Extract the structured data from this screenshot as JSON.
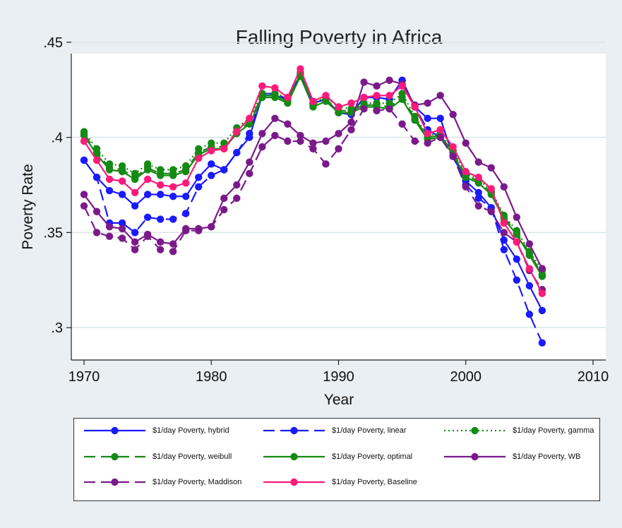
{
  "chart_data": {
    "type": "line",
    "title": "Falling Poverty in Africa",
    "xlabel": "Year",
    "ylabel": "Poverty Rate",
    "xlim": [
      1969,
      2011
    ],
    "ylim": [
      0.283,
      0.444
    ],
    "xticks": [
      1970,
      1980,
      1990,
      2000,
      2010
    ],
    "xtick_labels": [
      "1970",
      "1980",
      "1990",
      "2000",
      "2010"
    ],
    "yticks": [
      0.3,
      0.35,
      0.4,
      0.45
    ],
    "ytick_labels": [
      ".3",
      ".35",
      ".4",
      ".45"
    ],
    "grid": true,
    "legend_position": "bottom",
    "x": [
      1970,
      1971,
      1972,
      1973,
      1974,
      1975,
      1976,
      1977,
      1978,
      1979,
      1980,
      1981,
      1982,
      1983,
      1984,
      1985,
      1986,
      1987,
      1988,
      1989,
      1990,
      1991,
      1992,
      1993,
      1994,
      1995,
      1996,
      1997,
      1998,
      1999,
      2000,
      2001,
      2002,
      2003,
      2004,
      2005,
      2006
    ],
    "series": [
      {
        "name": "$1/day Poverty, hybrid",
        "color": "#1a1aff",
        "dash": "solid",
        "values": [
          0.388,
          0.379,
          0.372,
          0.37,
          0.364,
          0.37,
          0.37,
          0.369,
          0.369,
          0.379,
          0.386,
          0.383,
          0.392,
          0.4,
          0.422,
          0.422,
          0.42,
          0.433,
          0.418,
          0.42,
          0.413,
          0.412,
          0.421,
          0.421,
          0.42,
          0.43,
          0.416,
          0.41,
          0.41,
          0.39,
          0.377,
          0.371,
          0.363,
          0.346,
          0.336,
          0.322,
          0.309
        ]
      },
      {
        "name": "$1/day Poverty, linear",
        "color": "#1a1aff",
        "dash": "dashed",
        "values": [
          0.388,
          0.379,
          0.355,
          0.355,
          0.35,
          0.358,
          0.357,
          0.357,
          0.36,
          0.374,
          0.38,
          0.383,
          0.392,
          0.402,
          0.423,
          0.423,
          0.42,
          0.433,
          0.418,
          0.42,
          0.413,
          0.412,
          0.421,
          0.421,
          0.42,
          0.43,
          0.416,
          0.404,
          0.4,
          0.39,
          0.375,
          0.368,
          0.363,
          0.341,
          0.325,
          0.307,
          0.292
        ]
      },
      {
        "name": "$1/day Poverty, gamma",
        "color": "#158a15",
        "dash": "dotted",
        "values": [
          0.403,
          0.394,
          0.386,
          0.385,
          0.381,
          0.386,
          0.383,
          0.383,
          0.385,
          0.394,
          0.397,
          0.397,
          0.405,
          0.41,
          0.423,
          0.423,
          0.421,
          0.434,
          0.418,
          0.421,
          0.416,
          0.415,
          0.418,
          0.418,
          0.418,
          0.423,
          0.411,
          0.401,
          0.402,
          0.393,
          0.381,
          0.378,
          0.372,
          0.359,
          0.351,
          0.34,
          0.33
        ]
      },
      {
        "name": "$1/day Poverty, weibull",
        "color": "#158a15",
        "dash": "dashed",
        "values": [
          0.402,
          0.392,
          0.384,
          0.383,
          0.379,
          0.384,
          0.381,
          0.381,
          0.383,
          0.392,
          0.395,
          0.395,
          0.403,
          0.408,
          0.422,
          0.422,
          0.419,
          0.433,
          0.417,
          0.42,
          0.414,
          0.414,
          0.417,
          0.417,
          0.416,
          0.421,
          0.41,
          0.4,
          0.401,
          0.392,
          0.38,
          0.377,
          0.371,
          0.358,
          0.35,
          0.339,
          0.328
        ]
      },
      {
        "name": "$1/day Poverty, optimal",
        "color": "#158a15",
        "dash": "solid",
        "values": [
          0.401,
          0.391,
          0.383,
          0.382,
          0.378,
          0.383,
          0.38,
          0.38,
          0.382,
          0.391,
          0.394,
          0.394,
          0.402,
          0.407,
          0.421,
          0.421,
          0.418,
          0.432,
          0.416,
          0.419,
          0.413,
          0.413,
          0.416,
          0.416,
          0.415,
          0.42,
          0.409,
          0.399,
          0.4,
          0.391,
          0.379,
          0.376,
          0.37,
          0.357,
          0.349,
          0.338,
          0.327
        ]
      },
      {
        "name": "$1/day Poverty, WB",
        "color": "#7a1a8a",
        "dash": "solid",
        "values": [
          0.37,
          0.361,
          0.353,
          0.352,
          0.345,
          0.349,
          0.345,
          0.344,
          0.352,
          0.352,
          0.353,
          0.368,
          0.375,
          0.387,
          0.402,
          0.41,
          0.407,
          0.401,
          0.397,
          0.398,
          0.402,
          0.408,
          0.429,
          0.427,
          0.43,
          0.428,
          0.417,
          0.418,
          0.422,
          0.412,
          0.397,
          0.387,
          0.384,
          0.374,
          0.358,
          0.344,
          0.331
        ]
      },
      {
        "name": "$1/day Poverty, Maddison",
        "color": "#7a1a8a",
        "dash": "dashed",
        "values": [
          0.364,
          0.35,
          0.348,
          0.347,
          0.341,
          0.348,
          0.341,
          0.34,
          0.351,
          0.351,
          0.353,
          0.362,
          0.368,
          0.381,
          0.395,
          0.401,
          0.398,
          0.398,
          0.394,
          0.386,
          0.394,
          0.404,
          0.415,
          0.414,
          0.415,
          0.407,
          0.398,
          0.397,
          0.4,
          0.39,
          0.374,
          0.364,
          0.361,
          0.35,
          0.345,
          0.33,
          0.32
        ]
      },
      {
        "name": "$1/day Poverty, Baseline",
        "color": "#ff1a7a",
        "dash": "solid",
        "values": [
          0.398,
          0.388,
          0.378,
          0.377,
          0.371,
          0.378,
          0.375,
          0.374,
          0.376,
          0.389,
          0.393,
          0.394,
          0.403,
          0.41,
          0.427,
          0.426,
          0.421,
          0.436,
          0.419,
          0.422,
          0.416,
          0.418,
          0.421,
          0.422,
          0.422,
          0.427,
          0.416,
          0.402,
          0.404,
          0.395,
          0.382,
          0.379,
          0.373,
          0.355,
          0.345,
          0.331,
          0.318
        ]
      }
    ]
  }
}
